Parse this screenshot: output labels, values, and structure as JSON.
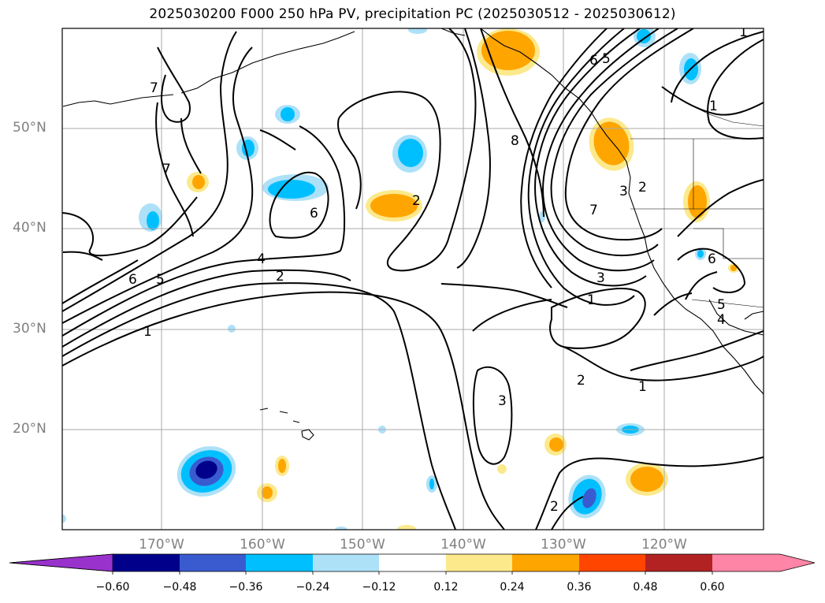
{
  "title": "2025030200 F000 250 hPa PV, precipitation PC (2025030512 - 2025030612)",
  "lat_labels": [
    "50°N",
    "40°N",
    "30°N",
    "20°N"
  ],
  "lon_labels": [
    "170°W",
    "160°W",
    "150°W",
    "140°W",
    "130°W",
    "120°W"
  ],
  "colorbar": {
    "ticks": [
      "−0.60",
      "−0.48",
      "−0.36",
      "−0.24",
      "−0.12",
      "0.12",
      "0.24",
      "0.36",
      "0.48",
      "0.60"
    ],
    "colors": [
      "#9932CC",
      "#00008B",
      "#3A5BCF",
      "#00BFFF",
      "#ADE1F8",
      "#FFFFFF",
      "#FCE98C",
      "#FFA500",
      "#FF4500",
      "#B22222",
      "#FF85A6"
    ]
  },
  "contour_labels": [
    "1",
    "2",
    "3",
    "4",
    "5",
    "6",
    "7",
    "8"
  ],
  "colors": {
    "negative_main": "#00BFFF",
    "positive_main": "#FFA500",
    "contour": "#000000",
    "grid": "#AAAAAA"
  }
}
